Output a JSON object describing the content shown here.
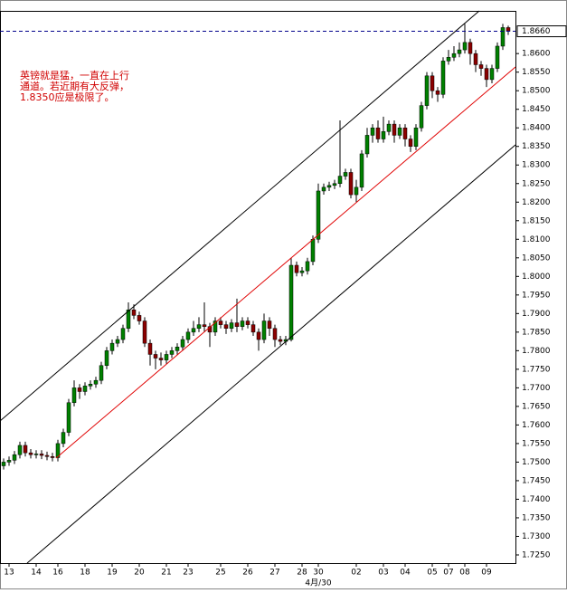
{
  "chart_data": {
    "type": "candlestick",
    "annotation": [
      "英镑就是猛，一直在上行",
      "通道。若近期有大反弹，",
      "1.8350应是极限了。"
    ],
    "x": [
      null,
      "13",
      null,
      null,
      null,
      null,
      "14",
      null,
      null,
      null,
      "16",
      null,
      null,
      null,
      null,
      "18",
      null,
      null,
      null,
      null,
      "19",
      null,
      null,
      null,
      null,
      "20",
      null,
      null,
      null,
      null,
      "21",
      null,
      null,
      null,
      "23",
      null,
      null,
      null,
      null,
      null,
      "25",
      null,
      null,
      null,
      null,
      "26",
      null,
      null,
      null,
      null,
      "27",
      null,
      null,
      null,
      null,
      "28",
      null,
      null,
      "30",
      null,
      null,
      null,
      null,
      null,
      null,
      "02",
      null,
      null,
      null,
      null,
      "03",
      null,
      null,
      null,
      "04",
      null,
      null,
      null,
      null,
      "05",
      null,
      null,
      "07",
      null,
      null,
      "08",
      null,
      null,
      null,
      "09",
      null,
      null,
      null,
      null
    ],
    "month_label": "4月/30",
    "open": [
      1.749,
      1.75,
      1.7505,
      1.752,
      1.7545,
      1.7525,
      1.752,
      1.7522,
      1.7518,
      1.7515,
      1.7512,
      1.755,
      1.758,
      1.766,
      1.77,
      1.769,
      1.7705,
      1.771,
      1.772,
      1.776,
      1.78,
      1.782,
      1.783,
      1.786,
      1.791,
      1.7895,
      1.788,
      1.782,
      1.779,
      1.778,
      1.7775,
      1.779,
      1.78,
      1.781,
      1.783,
      1.785,
      1.786,
      1.787,
      1.7865,
      1.785,
      1.788,
      1.787,
      1.786,
      1.7875,
      1.7865,
      1.788,
      1.787,
      1.785,
      1.783,
      1.788,
      1.786,
      1.783,
      1.7825,
      1.783,
      1.803,
      1.801,
      1.8015,
      1.804,
      1.81,
      1.823,
      1.824,
      1.8245,
      1.825,
      1.827,
      1.828,
      1.822,
      1.824,
      1.833,
      1.838,
      1.84,
      1.837,
      1.839,
      1.841,
      1.838,
      1.84,
      1.837,
      1.835,
      1.84,
      1.846,
      1.854,
      1.85,
      1.849,
      1.858,
      1.859,
      1.86,
      1.861,
      1.863,
      1.86,
      1.857,
      1.856,
      1.853,
      1.856,
      1.862,
      1.867
    ],
    "high": [
      1.751,
      1.7515,
      1.753,
      1.7555,
      1.7555,
      1.7535,
      1.7532,
      1.7532,
      1.7528,
      1.7525,
      1.756,
      1.759,
      1.767,
      1.772,
      1.771,
      1.7715,
      1.772,
      1.773,
      1.777,
      1.781,
      1.783,
      1.784,
      1.787,
      1.793,
      1.7925,
      1.7905,
      1.789,
      1.783,
      1.78,
      1.7795,
      1.78,
      1.781,
      1.782,
      1.784,
      1.786,
      1.788,
      1.789,
      1.793,
      1.7875,
      1.789,
      1.789,
      1.788,
      1.7885,
      1.794,
      1.789,
      1.789,
      1.788,
      1.786,
      1.79,
      1.789,
      1.787,
      1.784,
      1.784,
      1.805,
      1.804,
      1.8025,
      1.805,
      1.811,
      1.825,
      1.825,
      1.8255,
      1.826,
      1.842,
      1.829,
      1.829,
      1.826,
      1.834,
      1.84,
      1.841,
      1.842,
      1.843,
      1.842,
      1.842,
      1.841,
      1.841,
      1.838,
      1.841,
      1.847,
      1.855,
      1.855,
      1.851,
      1.859,
      1.861,
      1.862,
      1.863,
      1.868,
      1.864,
      1.861,
      1.858,
      1.857,
      1.857,
      1.863,
      1.868,
      1.8675
    ],
    "low": [
      1.748,
      1.749,
      1.7495,
      1.751,
      1.7515,
      1.751,
      1.751,
      1.7508,
      1.7505,
      1.7502,
      1.7502,
      1.754,
      1.757,
      1.765,
      1.767,
      1.768,
      1.7695,
      1.77,
      1.771,
      1.775,
      1.779,
      1.781,
      1.782,
      1.785,
      1.7885,
      1.787,
      1.781,
      1.776,
      1.775,
      1.776,
      1.7765,
      1.778,
      1.779,
      1.78,
      1.782,
      1.784,
      1.785,
      1.785,
      1.781,
      1.784,
      1.786,
      1.7845,
      1.785,
      1.785,
      1.7855,
      1.786,
      1.784,
      1.78,
      1.782,
      1.784,
      1.781,
      1.7815,
      1.7815,
      1.7825,
      1.8,
      1.8,
      1.8005,
      1.803,
      1.809,
      1.822,
      1.823,
      1.8235,
      1.824,
      1.826,
      1.821,
      1.82,
      1.823,
      1.832,
      1.836,
      1.836,
      1.836,
      1.838,
      1.836,
      1.837,
      1.835,
      1.8335,
      1.834,
      1.839,
      1.845,
      1.848,
      1.847,
      1.848,
      1.857,
      1.858,
      1.859,
      1.86,
      1.857,
      1.855,
      1.854,
      1.851,
      1.852,
      1.855,
      1.861,
      1.865
    ],
    "close": [
      1.75,
      1.7505,
      1.752,
      1.7545,
      1.7525,
      1.752,
      1.7522,
      1.7518,
      1.7515,
      1.7512,
      1.755,
      1.758,
      1.766,
      1.77,
      1.769,
      1.7705,
      1.771,
      1.772,
      1.776,
      1.78,
      1.782,
      1.783,
      1.786,
      1.791,
      1.7895,
      1.788,
      1.782,
      1.779,
      1.778,
      1.7775,
      1.779,
      1.78,
      1.781,
      1.783,
      1.785,
      1.786,
      1.787,
      1.7865,
      1.785,
      1.788,
      1.787,
      1.786,
      1.7875,
      1.7865,
      1.788,
      1.787,
      1.785,
      1.783,
      1.788,
      1.786,
      1.783,
      1.7825,
      1.783,
      1.803,
      1.801,
      1.8015,
      1.804,
      1.81,
      1.823,
      1.824,
      1.8245,
      1.825,
      1.827,
      1.828,
      1.822,
      1.824,
      1.833,
      1.838,
      1.84,
      1.837,
      1.839,
      1.841,
      1.838,
      1.84,
      1.837,
      1.835,
      1.84,
      1.846,
      1.854,
      1.85,
      1.849,
      1.858,
      1.859,
      1.86,
      1.861,
      1.863,
      1.86,
      1.857,
      1.856,
      1.853,
      1.856,
      1.862,
      1.867,
      1.866
    ],
    "up_color": "#008000",
    "down_color": "#8b0000",
    "current_price": {
      "value": 1.866,
      "label": "1.8660"
    },
    "ylim": [
      1.7228,
      1.8715
    ],
    "yticks": [
      {
        "value": 1.725,
        "label": "1.7250"
      },
      {
        "value": 1.73,
        "label": "1.7300"
      },
      {
        "value": 1.735,
        "label": "1.7350"
      },
      {
        "value": 1.74,
        "label": "1.7400"
      },
      {
        "value": 1.745,
        "label": "1.7450"
      },
      {
        "value": 1.75,
        "label": "1.7500"
      },
      {
        "value": 1.755,
        "label": "1.7550"
      },
      {
        "value": 1.76,
        "label": "1.7600"
      },
      {
        "value": 1.765,
        "label": "1.7650"
      },
      {
        "value": 1.77,
        "label": "1.7700"
      },
      {
        "value": 1.775,
        "label": "1.7750"
      },
      {
        "value": 1.78,
        "label": "1.7800"
      },
      {
        "value": 1.785,
        "label": "1.7850"
      },
      {
        "value": 1.79,
        "label": "1.7900"
      },
      {
        "value": 1.795,
        "label": "1.7950"
      },
      {
        "value": 1.8,
        "label": "1.8000"
      },
      {
        "value": 1.805,
        "label": "1.8050"
      },
      {
        "value": 1.81,
        "label": "1.8100"
      },
      {
        "value": 1.815,
        "label": "1.8150"
      },
      {
        "value": 1.82,
        "label": "1.8200"
      },
      {
        "value": 1.825,
        "label": "1.8250"
      },
      {
        "value": 1.83,
        "label": "1.8300"
      },
      {
        "value": 1.835,
        "label": "1.8350"
      },
      {
        "value": 1.84,
        "label": "1.8400"
      },
      {
        "value": 1.845,
        "label": "1.8450"
      },
      {
        "value": 1.85,
        "label": "1.8500"
      },
      {
        "value": 1.855,
        "label": "1.8550"
      },
      {
        "value": 1.86,
        "label": "1.8600"
      }
    ]
  }
}
